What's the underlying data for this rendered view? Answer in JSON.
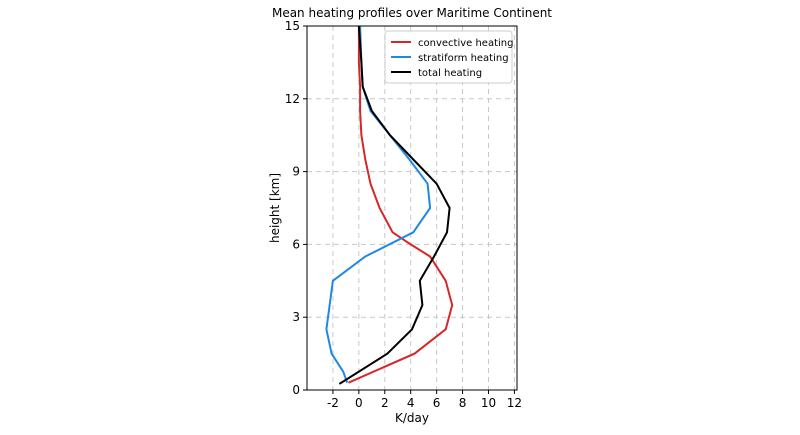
{
  "chart_data": {
    "type": "line",
    "title": "Mean heating profiles over Maritime Continent",
    "xlabel": "K/day",
    "ylabel": "height [km]",
    "xlim": [
      -4,
      12.2
    ],
    "ylim": [
      0,
      15
    ],
    "xticks": [
      -2,
      0,
      2,
      4,
      6,
      8,
      10,
      12
    ],
    "yticks": [
      0,
      3,
      6,
      9,
      12,
      15
    ],
    "grid": true,
    "legend": "upper right",
    "series": [
      {
        "name": "convective heating",
        "color": "#d62728",
        "x": [
          -0.8,
          4.3,
          6.7,
          7.2,
          6.7,
          5.5,
          4.0,
          2.6,
          1.6,
          0.9,
          0.5,
          0.2,
          0.1,
          0.1,
          0.0,
          0.0
        ],
        "y": [
          0.3,
          1.5,
          2.5,
          3.5,
          4.5,
          5.5,
          6.0,
          6.5,
          7.5,
          8.5,
          9.5,
          10.5,
          11.5,
          12.5,
          13.5,
          15
        ]
      },
      {
        "name": "stratiform heating",
        "color": "#1f88e5",
        "x": [
          -0.9,
          -1.2,
          -2.1,
          -2.5,
          -2.0,
          0.5,
          4.2,
          5.5,
          5.3,
          3.9,
          2.4,
          0.9,
          0.3,
          0.2,
          0.1
        ],
        "y": [
          0.3,
          0.75,
          1.5,
          2.5,
          4.5,
          5.5,
          6.5,
          7.5,
          8.5,
          9.5,
          10.5,
          11.5,
          12.5,
          13.5,
          15
        ]
      },
      {
        "name": "total heating",
        "color": "#000000",
        "x": [
          -1.5,
          2.2,
          4.1,
          4.9,
          4.7,
          5.8,
          6.8,
          7.0,
          6.0,
          4.2,
          2.4,
          1.0,
          0.3,
          0.2,
          0.0
        ],
        "y": [
          0.25,
          1.5,
          2.5,
          3.5,
          4.5,
          5.5,
          6.5,
          7.5,
          8.5,
          9.5,
          10.5,
          11.5,
          12.5,
          13.5,
          15
        ]
      }
    ]
  }
}
